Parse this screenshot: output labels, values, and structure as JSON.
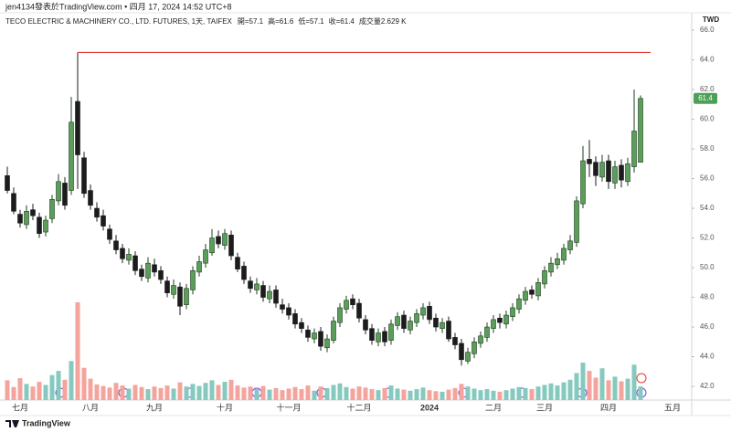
{
  "chart_data": {
    "type": "candlestick",
    "published": "jen4134發表於TradingView.com • 四月 17, 2024 14:52 UTC+8",
    "title": "TECO ELECTRIC & MACHINERY CO., LTD. FUTURES, 1天, TAIFEX",
    "header_values": [
      "開=57.1",
      "高=61.6",
      "低=57.1",
      "收=61.4",
      "成交量2.629 K"
    ],
    "currency": "TWD",
    "brand": "TradingView",
    "categories": [
      null,
      null,
      "七月",
      null,
      null,
      null,
      null,
      null,
      null,
      null,
      null,
      null,
      null,
      "八月",
      null,
      null,
      null,
      null,
      null,
      null,
      null,
      null,
      null,
      "九月",
      null,
      null,
      null,
      null,
      null,
      null,
      null,
      null,
      null,
      null,
      "十月",
      null,
      null,
      null,
      null,
      null,
      null,
      null,
      null,
      null,
      "十一月",
      null,
      null,
      null,
      null,
      null,
      null,
      null,
      null,
      null,
      null,
      "十二月",
      null,
      null,
      null,
      null,
      null,
      null,
      null,
      null,
      null,
      null,
      "2024",
      null,
      null,
      null,
      null,
      null,
      null,
      null,
      null,
      null,
      "二月",
      null,
      null,
      null,
      null,
      null,
      null,
      null,
      "三月",
      null,
      null,
      null,
      null,
      null,
      null,
      null,
      null,
      null,
      "四月",
      null,
      null,
      null,
      null,
      null,
      null,
      null,
      null,
      null,
      "五月"
    ],
    "open": [
      56.2,
      55.0,
      53.6,
      52.9,
      53.9,
      53.4,
      52.4,
      53.3,
      54.5,
      55.7,
      55.2,
      61.2,
      57.4,
      55.2,
      54.0,
      53.5,
      52.6,
      51.8,
      51.3,
      50.5,
      50.8,
      49.9,
      49.3,
      50.2,
      49.8,
      49.1,
      48.2,
      48.7,
      47.5,
      48.5,
      49.7,
      50.3,
      51.0,
      52.1,
      51.5,
      52.2,
      50.7,
      50.1,
      49.1,
      48.5,
      48.8,
      47.9,
      48.5,
      47.5,
      47.3,
      46.9,
      46.3,
      45.8,
      45.2,
      45.7,
      44.6,
      45.1,
      46.3,
      47.2,
      47.9,
      47.6,
      46.5,
      45.9,
      45.0,
      45.7,
      45.1,
      46.1,
      46.8,
      45.8,
      46.3,
      46.8,
      47.4,
      46.6,
      45.9,
      46.4,
      45.3,
      44.9,
      43.7,
      44.2,
      44.9,
      45.3,
      45.9,
      46.6,
      46.2,
      46.7,
      47.2,
      47.8,
      48.5,
      48.1,
      48.9,
      49.7,
      50.2,
      50.5,
      51.2,
      51.7,
      54.3,
      57.3,
      57.1,
      56.1,
      57.2,
      55.7,
      56.9,
      55.8,
      56.8,
      57.1,
      null,
      null,
      null,
      null,
      null
    ],
    "high": [
      56.8,
      55.4,
      53.9,
      54.2,
      54.3,
      53.7,
      53.5,
      54.9,
      56.3,
      56.1,
      61.5,
      64.5,
      57.8,
      55.6,
      54.4,
      53.9,
      52.9,
      52.2,
      51.6,
      51.3,
      51.1,
      50.2,
      50.7,
      50.6,
      50.1,
      49.4,
      49.2,
      49.0,
      48.9,
      50.1,
      50.8,
      51.6,
      52.6,
      52.5,
      52.6,
      52.5,
      51.0,
      50.4,
      49.4,
      49.3,
      49.1,
      48.8,
      48.8,
      47.9,
      47.6,
      47.2,
      46.6,
      46.1,
      45.9,
      46.0,
      45.5,
      46.7,
      47.6,
      48.1,
      48.2,
      47.9,
      46.8,
      46.2,
      45.9,
      46.0,
      46.5,
      47.0,
      47.1,
      46.7,
      47.2,
      47.6,
      47.7,
      46.9,
      46.6,
      46.7,
      45.6,
      45.2,
      44.6,
      45.3,
      45.7,
      46.3,
      46.8,
      46.9,
      47.1,
      47.6,
      48.2,
      48.7,
      48.8,
      49.3,
      50.1,
      50.7,
      51.0,
      51.6,
      52.2,
      54.8,
      58.2,
      58.6,
      57.5,
      57.6,
      57.6,
      57.2,
      57.3,
      57.4,
      62.0,
      61.6,
      null,
      null,
      null,
      null,
      null
    ],
    "low": [
      55.0,
      53.6,
      52.7,
      52.6,
      53.2,
      52.0,
      52.1,
      53.0,
      54.2,
      53.9,
      54.9,
      55.3,
      54.7,
      53.9,
      53.1,
      52.5,
      51.6,
      50.9,
      50.3,
      50.2,
      49.5,
      49.1,
      49.0,
      49.4,
      48.9,
      48.0,
      47.9,
      46.8,
      47.2,
      48.2,
      49.4,
      50.0,
      50.8,
      51.3,
      51.2,
      50.5,
      49.7,
      48.9,
      48.3,
      48.2,
      47.7,
      47.6,
      47.3,
      46.9,
      46.5,
      45.9,
      45.6,
      45.0,
      44.9,
      44.4,
      44.3,
      44.9,
      46.0,
      46.9,
      47.2,
      46.3,
      45.5,
      44.8,
      44.7,
      44.7,
      44.8,
      45.8,
      45.6,
      45.5,
      46.0,
      46.5,
      46.2,
      45.7,
      45.6,
      45.0,
      44.5,
      43.4,
      43.5,
      43.9,
      44.6,
      45.0,
      45.6,
      45.9,
      45.9,
      46.4,
      46.9,
      47.5,
      47.9,
      47.8,
      48.6,
      49.4,
      49.9,
      50.2,
      50.9,
      51.4,
      54.0,
      56.1,
      55.5,
      55.8,
      55.3,
      55.3,
      55.4,
      55.5,
      56.4,
      57.1,
      null,
      null,
      null,
      null,
      null
    ],
    "close": [
      55.2,
      53.8,
      53.0,
      53.8,
      53.5,
      52.3,
      53.2,
      54.6,
      55.8,
      54.2,
      59.8,
      57.6,
      55.0,
      54.2,
      53.4,
      52.8,
      51.9,
      51.2,
      50.6,
      50.9,
      49.8,
      49.4,
      50.3,
      49.7,
      49.2,
      48.3,
      48.8,
      47.4,
      48.6,
      49.8,
      50.4,
      51.2,
      52.0,
      51.6,
      52.3,
      50.8,
      49.9,
      49.2,
      48.6,
      48.9,
      48.0,
      48.4,
      47.6,
      47.2,
      46.8,
      46.2,
      45.9,
      45.3,
      45.6,
      44.7,
      45.2,
      46.4,
      47.3,
      47.8,
      47.5,
      46.6,
      45.8,
      45.1,
      45.6,
      45.0,
      46.2,
      46.7,
      45.9,
      46.4,
      46.9,
      47.3,
      46.5,
      46.0,
      46.3,
      45.2,
      44.8,
      43.8,
      44.3,
      45.0,
      45.4,
      46.0,
      46.5,
      46.3,
      46.8,
      47.3,
      47.9,
      48.4,
      48.2,
      49.0,
      49.8,
      50.3,
      50.6,
      51.3,
      51.8,
      54.5,
      57.2,
      57.0,
      56.2,
      57.1,
      55.8,
      56.8,
      55.9,
      57.0,
      59.2,
      61.4,
      null,
      null,
      null,
      null,
      null
    ],
    "volume": [
      3800,
      2500,
      4200,
      3100,
      2600,
      3500,
      2900,
      4800,
      5600,
      3900,
      7500,
      18800,
      6200,
      4100,
      3000,
      2700,
      2400,
      3300,
      2800,
      2200,
      2900,
      2500,
      2100,
      2600,
      2300,
      2800,
      2200,
      3400,
      2600,
      3100,
      2700,
      3300,
      3800,
      2900,
      3500,
      3900,
      2800,
      2400,
      2600,
      2100,
      2700,
      2000,
      2300,
      1900,
      2200,
      2500,
      2100,
      2800,
      1800,
      2600,
      2300,
      2900,
      3200,
      2500,
      2200,
      2600,
      2400,
      2100,
      1900,
      2300,
      2800,
      2200,
      2000,
      1800,
      2100,
      2400,
      1900,
      1700,
      1600,
      2000,
      2300,
      3100,
      2600,
      2200,
      1900,
      2100,
      1800,
      1600,
      1900,
      2200,
      2500,
      2300,
      2100,
      2600,
      2900,
      3200,
      2800,
      3400,
      3900,
      5200,
      7200,
      5600,
      4300,
      6100,
      3800,
      4500,
      3600,
      4100,
      6800,
      2629,
      null,
      null,
      null,
      null,
      null
    ],
    "up_color": "#5a9e5a",
    "down_color": "#1c1c1c",
    "up_volume_color": "#86c9bf",
    "down_volume_color": "#f4a49d",
    "last_price_color": "#4e9f57",
    "hline": {
      "value": 64.5,
      "color": "#e53935"
    },
    "ylim": [
      41.08,
      66.31
    ],
    "yticks": [
      {
        "value": 42,
        "label": "42.0"
      },
      {
        "value": 44,
        "label": "44.0"
      },
      {
        "value": 46,
        "label": "46.0"
      },
      {
        "value": 48,
        "label": "48.0"
      },
      {
        "value": 50,
        "label": "50.0"
      },
      {
        "value": 52,
        "label": "52.0"
      },
      {
        "value": 54,
        "label": "54.0"
      },
      {
        "value": 56,
        "label": "56.0"
      },
      {
        "value": 58,
        "label": "58.0"
      },
      {
        "value": 60,
        "label": "60.0"
      },
      {
        "value": 62,
        "label": "62.0"
      },
      {
        "value": 64,
        "label": "64.0"
      },
      {
        "value": 66,
        "label": "66.0"
      }
    ],
    "grid": false
  }
}
